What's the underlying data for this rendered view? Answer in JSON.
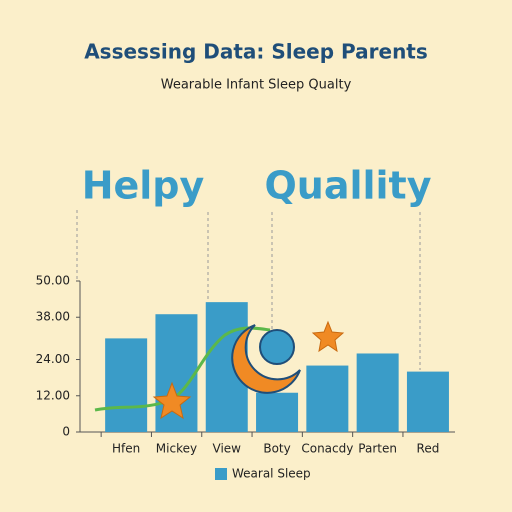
{
  "chart_data": {
    "type": "bar",
    "title": "Assessing Data: Sleep Parents",
    "subtitle": "Wearable Infant Sleep Qualty",
    "annotations": [
      "Helpy",
      "Quallity"
    ],
    "categories": [
      "Hfen",
      "Mickey",
      "View",
      "Boty",
      "Conacdy",
      "Parten",
      "Red"
    ],
    "series": [
      {
        "name": "Wearal Sleep",
        "color": "#3a9cc8",
        "values": [
          31,
          39,
          43,
          13,
          22,
          26,
          20
        ]
      }
    ],
    "ylim": [
      0,
      50
    ],
    "yticks": [
      0,
      {
        "value": 12,
        "label": "12.00"
      },
      {
        "value": 24,
        "label": "24.00"
      },
      {
        "value": 38,
        "label": "38.00"
      },
      {
        "value": 50,
        "label": "50.00"
      }
    ],
    "grid": false
  }
}
